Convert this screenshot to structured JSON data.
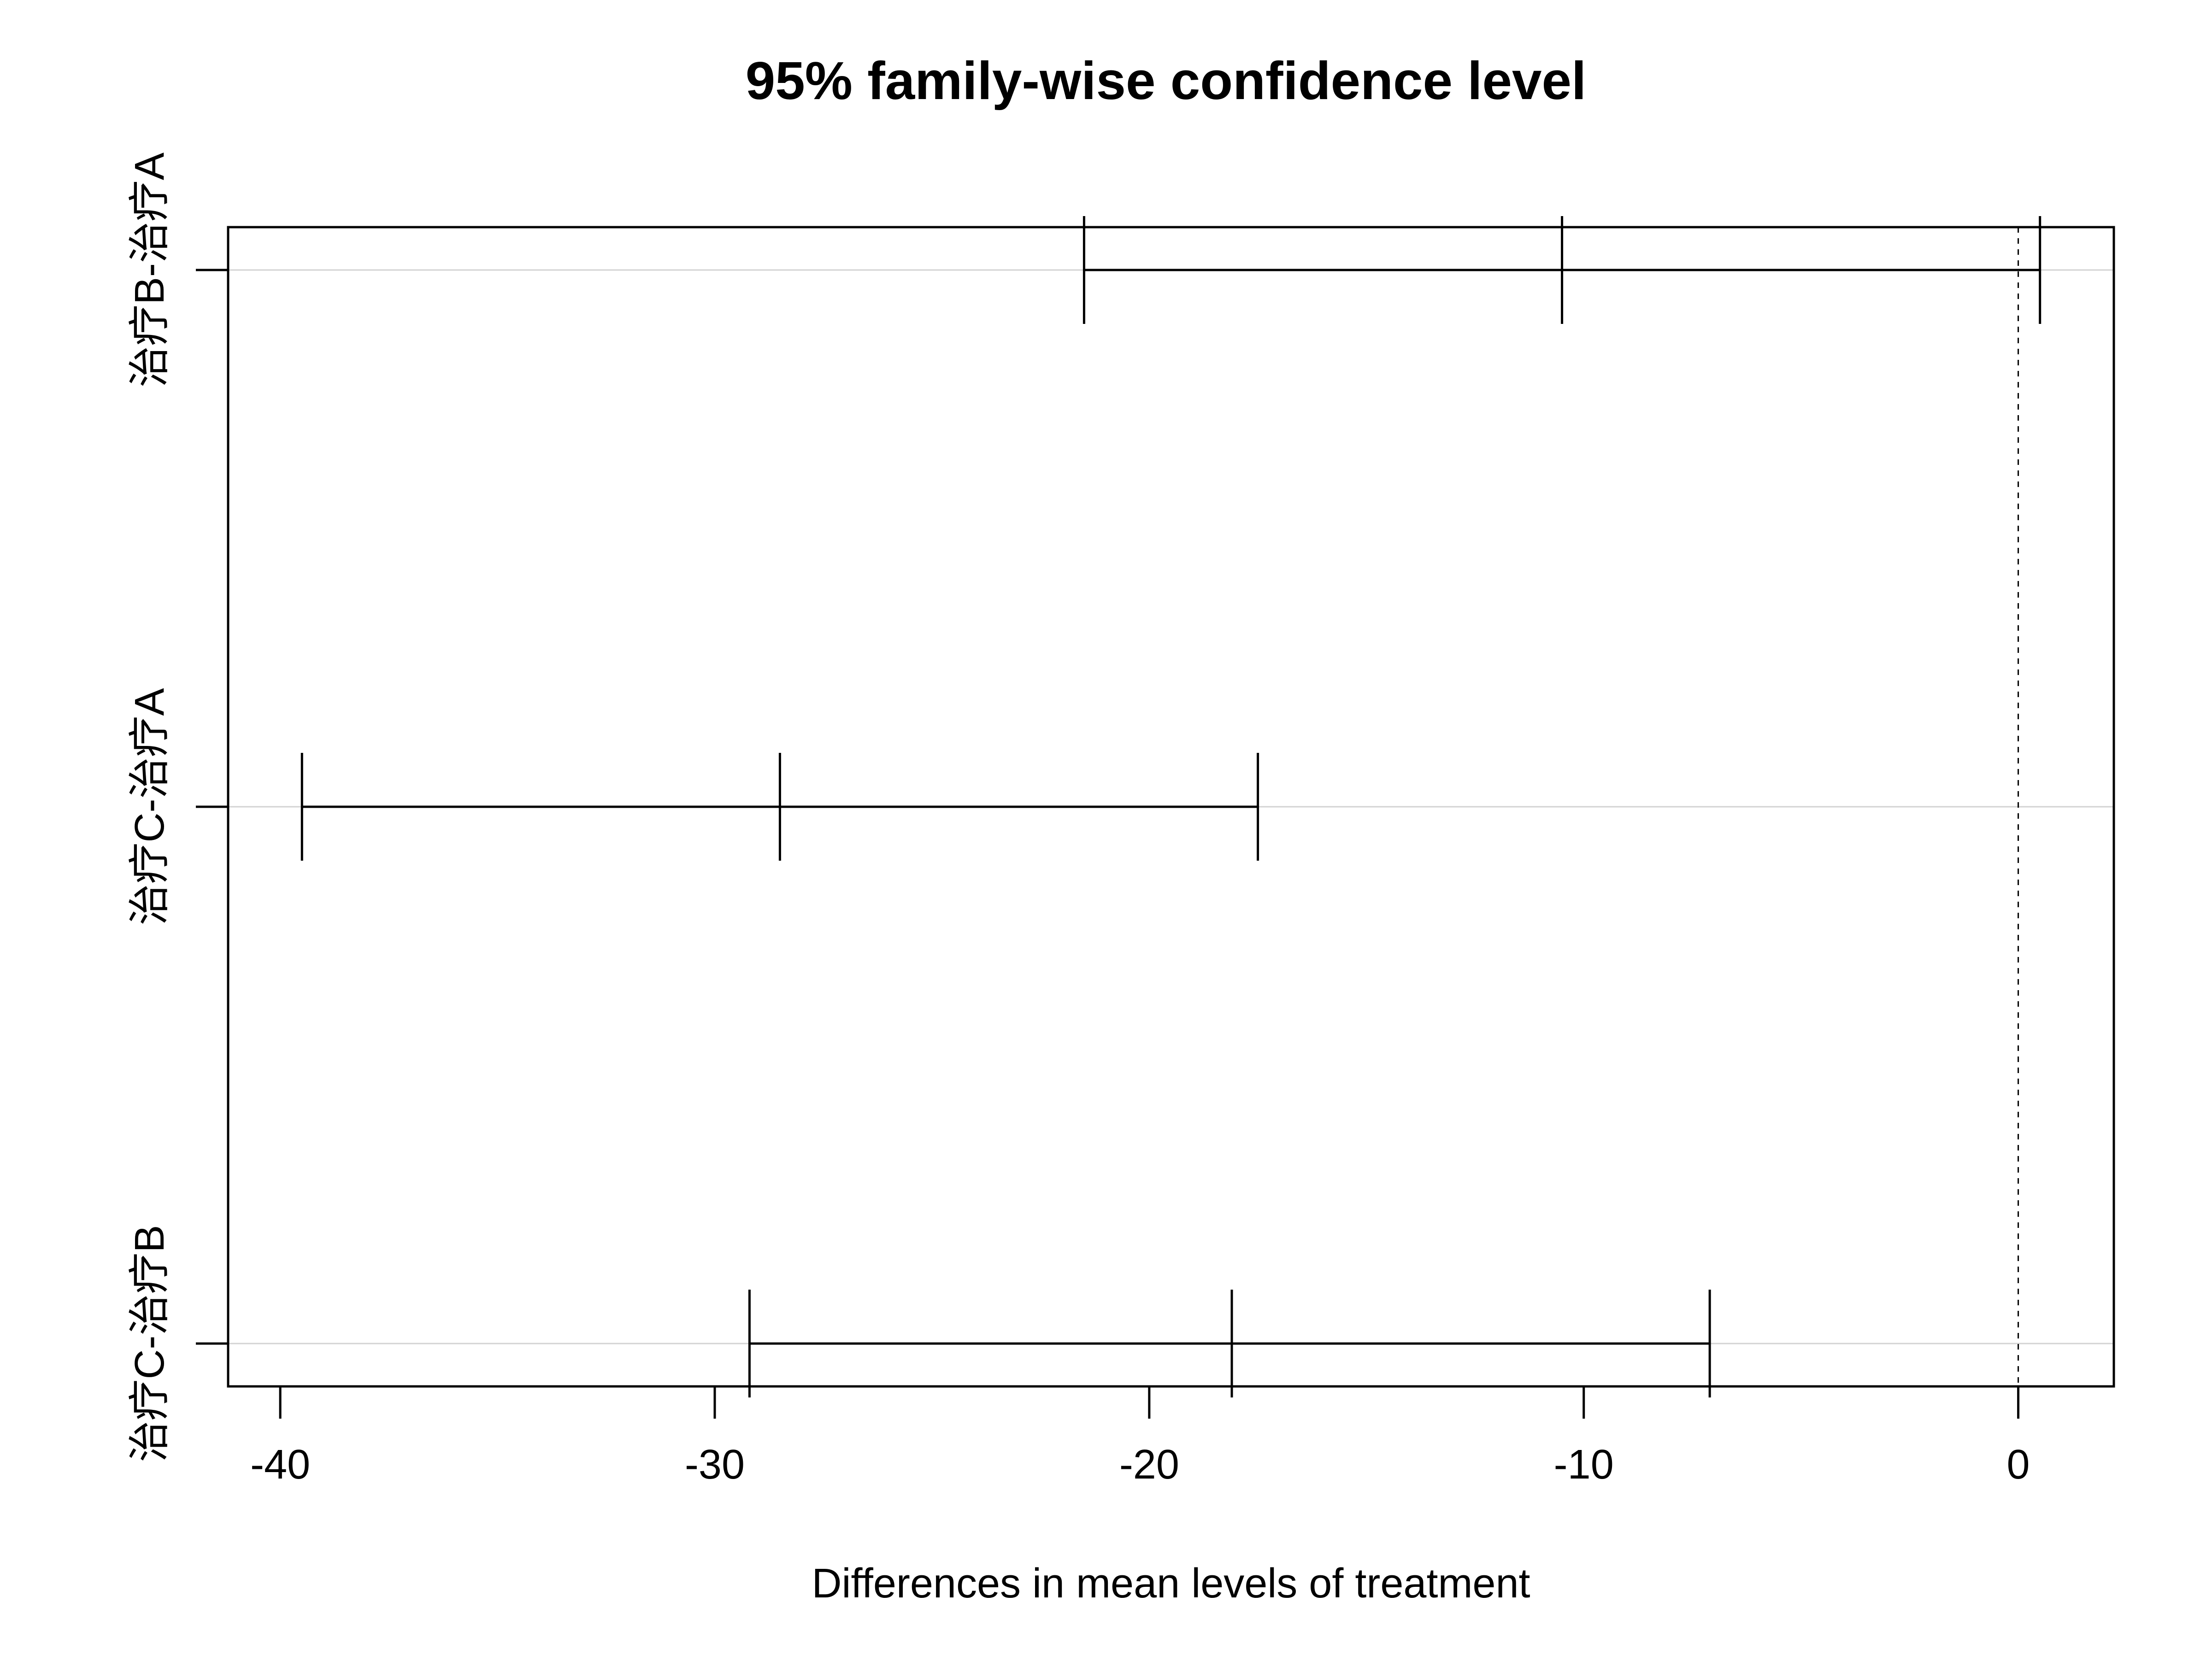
{
  "chart_data": {
    "type": "interval",
    "title": "95% family-wise confidence level",
    "xlabel": "Differences in mean levels of treatment",
    "ylabel": "",
    "xlim": [
      -41.2,
      2.2
    ],
    "x_ticks": [
      -40,
      -30,
      -20,
      -10,
      0
    ],
    "x_tick_labels": [
      "-40",
      "-30",
      "-20",
      "-10",
      "0"
    ],
    "reference_line": {
      "x": 0,
      "style": "dashed"
    },
    "grid": "horizontal",
    "categories": [
      "治疗B-治疗A",
      "治疗C-治疗A",
      "治疗C-治疗B"
    ],
    "series": [
      {
        "lower": [
          -21.5,
          -39.5,
          -29.2
        ],
        "estimate": [
          -10.5,
          -28.5,
          -18.1
        ],
        "upper": [
          0.5,
          -17.5,
          -7.1
        ]
      }
    ]
  },
  "colors": {
    "line": "#000000",
    "grid": "#d3d3d3",
    "background": "#ffffff"
  }
}
